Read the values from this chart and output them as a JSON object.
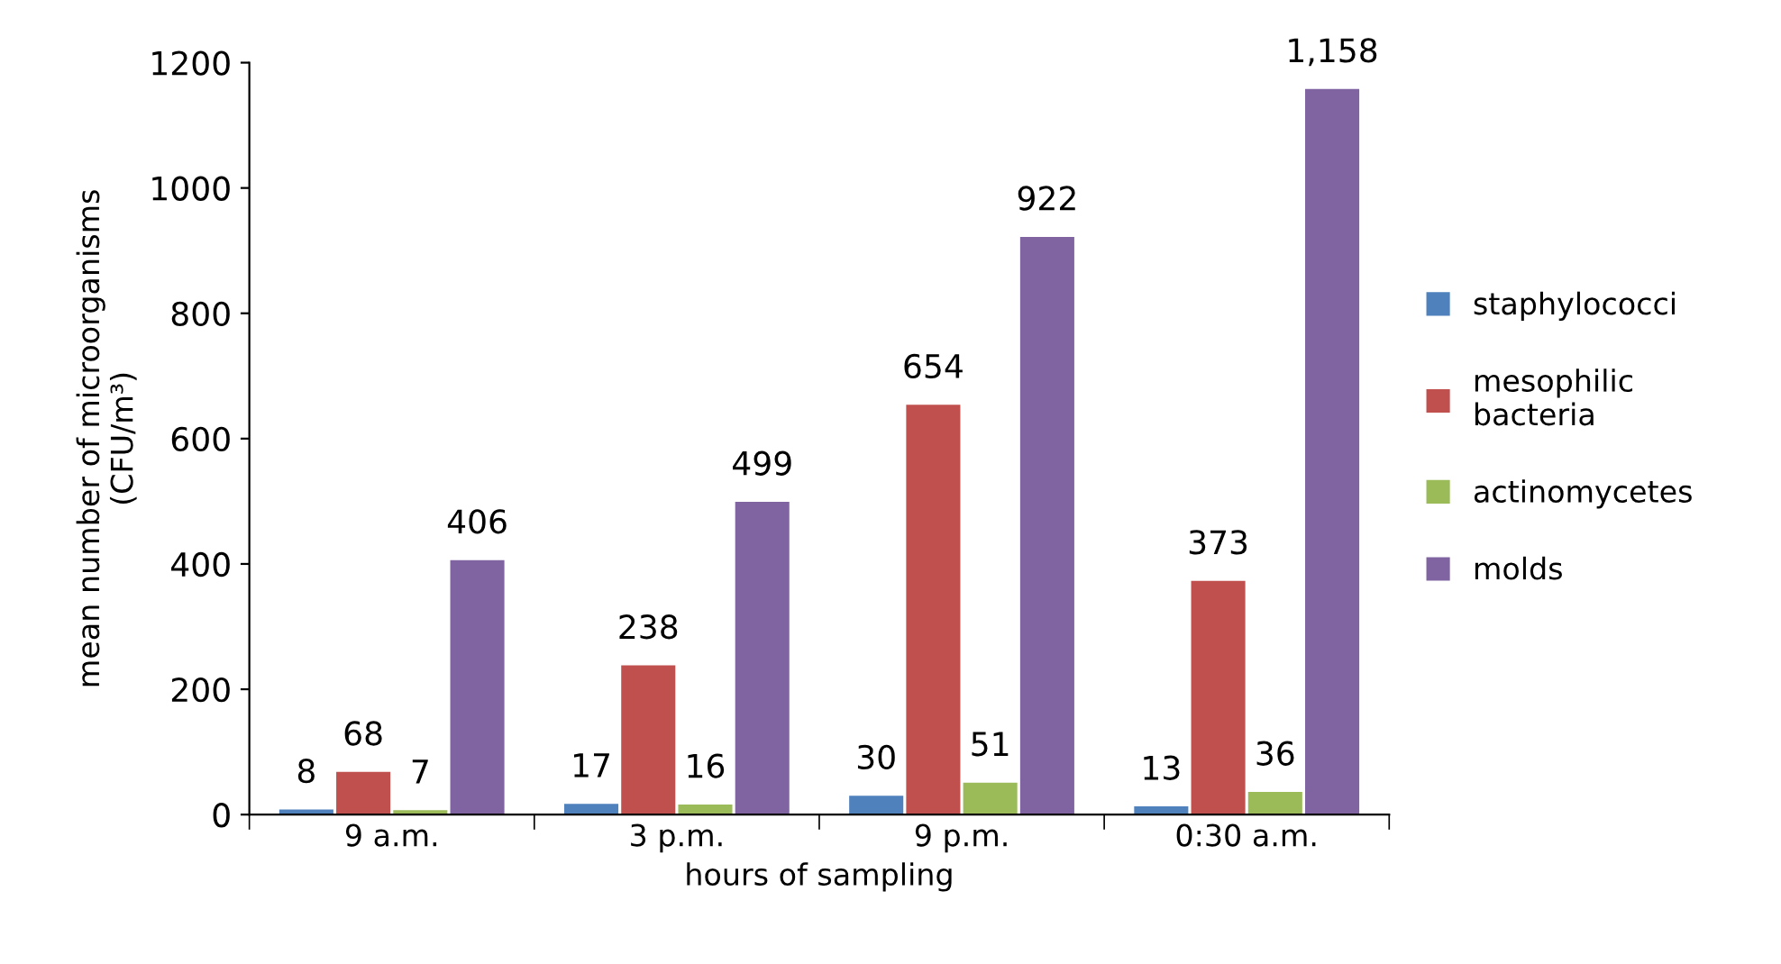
{
  "chart_data": {
    "type": "bar",
    "xlabel": "hours of sampling",
    "ylabel": "mean number of microorganisms\n(CFU/m³)",
    "categories": [
      "9 a.m.",
      "3 p.m.",
      "9 p.m.",
      "0:30 a.m."
    ],
    "series": [
      {
        "name": "staphylococci",
        "color": "#4f81bd",
        "values": [
          8,
          17,
          30,
          13
        ],
        "value_labels": [
          "8",
          "17",
          "30",
          "13"
        ]
      },
      {
        "name": "mesophilic\nbacteria",
        "color": "#c0504d",
        "values": [
          68,
          238,
          654,
          373
        ],
        "value_labels": [
          "68",
          "238",
          "654",
          "373"
        ]
      },
      {
        "name": "actinomycetes",
        "color": "#9bbb59",
        "values": [
          7,
          16,
          51,
          36
        ],
        "value_labels": [
          "7",
          "16",
          "51",
          "36"
        ]
      },
      {
        "name": "molds",
        "color": "#8064a2",
        "values": [
          406,
          499,
          922,
          1158
        ],
        "value_labels": [
          "406",
          "499",
          "922",
          "1,158"
        ]
      }
    ],
    "ylim": [
      0,
      1200
    ],
    "yticks": [
      0,
      200,
      400,
      600,
      800,
      1000,
      1200
    ],
    "grid": false,
    "legend": "right"
  }
}
